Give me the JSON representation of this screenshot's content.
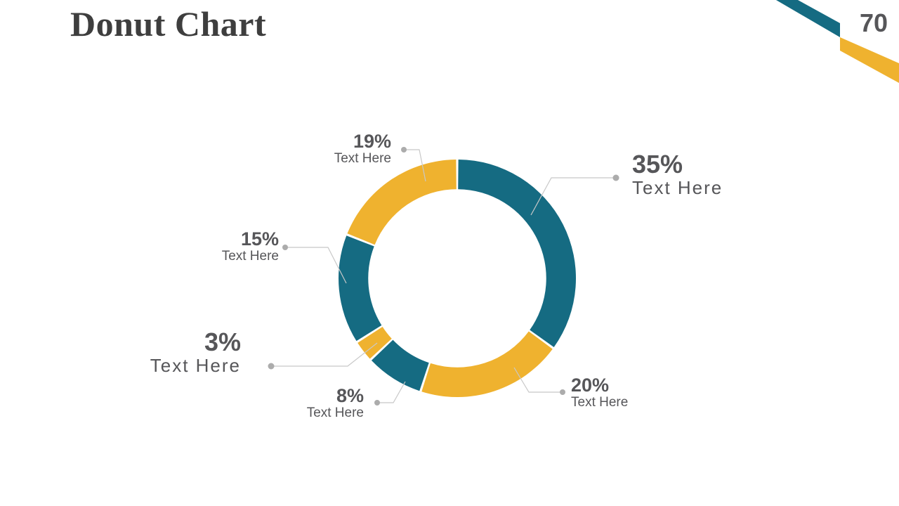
{
  "page": {
    "title": "Donut Chart",
    "page_number": "70",
    "background": "#FFFFFF"
  },
  "colors": {
    "teal": "#156B82",
    "yellow": "#EFB22F",
    "title_text": "#3E3E3E",
    "label_text": "#565659",
    "leader_line": "#C8C8C8",
    "leader_dot": "#ACACAC"
  },
  "chart_data": {
    "type": "pie",
    "subtype": "donut",
    "title": "Donut Chart",
    "unit": "percent",
    "direction": "clockwise",
    "start_angle_deg": 0,
    "inner_radius_ratio": 0.75,
    "segments": [
      {
        "value": 35,
        "label": "Text Here",
        "color": "#156B82"
      },
      {
        "value": 20,
        "label": "Text Here",
        "color": "#EFB22F"
      },
      {
        "value": 8,
        "label": "Text Here",
        "color": "#156B82"
      },
      {
        "value": 3,
        "label": "Text Here",
        "color": "#EFB22F"
      },
      {
        "value": 15,
        "label": "Text Here",
        "color": "#156B82"
      },
      {
        "value": 19,
        "label": "Text Here",
        "color": "#EFB22F"
      }
    ],
    "callouts": {
      "c19": {
        "value": "19%",
        "caption": "Text Here"
      },
      "c35": {
        "value": "35%",
        "caption": "Text Here"
      },
      "c15": {
        "value": "15%",
        "caption": "Text Here"
      },
      "c3": {
        "value": "3%",
        "caption": "Text Here"
      },
      "c8": {
        "value": "8%",
        "caption": "Text Here"
      },
      "c20": {
        "value": "20%",
        "caption": "Text Here"
      }
    }
  }
}
